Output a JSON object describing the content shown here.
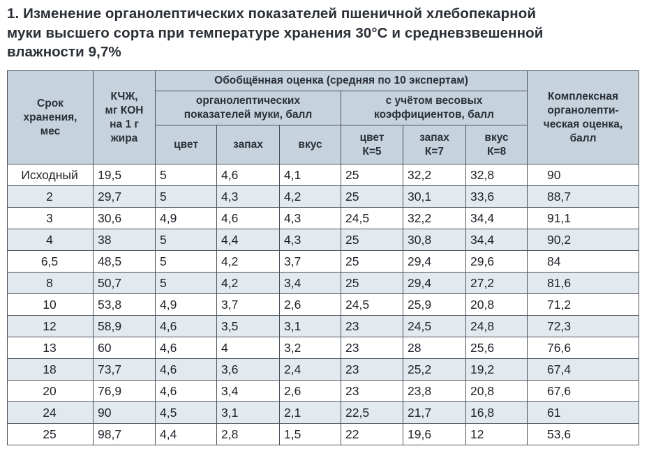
{
  "caption": {
    "line1": "1. Изменение органолептических показателей пшеничной хлебопекарной",
    "line2": "муки высшего сорта при температуре хранения 30°С и средневзвешенной",
    "line3": "влажности 9,7%"
  },
  "table": {
    "headers": {
      "term": "Срок\nхранения,\nмес",
      "acid": "КЧЖ,\nмг КОН\nна 1 г\nжира",
      "general": "Обобщённая оценка (средняя по 10 экспертам)",
      "complex": "Комплексная\nорганолепти-\nческая оценка,\nбалл",
      "organoleptic": "органолептических\nпоказателей муки, балл",
      "weighted": "с учётом весовых\nкоэффициентов, балл",
      "color": "цвет",
      "smell": "запах",
      "taste": "вкус",
      "color_k": "цвет\nК=5",
      "smell_k": "запах\nК=7",
      "taste_k": "вкус\nК=8"
    },
    "rows": [
      {
        "term": "Исходный",
        "acid": "19,5",
        "color": "5",
        "smell": "4,6",
        "taste": "4,1",
        "color_k": "25",
        "smell_k": "32,2",
        "taste_k": "32,8",
        "total": "90"
      },
      {
        "term": "2",
        "acid": "29,7",
        "color": "5",
        "smell": "4,3",
        "taste": "4,2",
        "color_k": "25",
        "smell_k": "30,1",
        "taste_k": "33,6",
        "total": "88,7"
      },
      {
        "term": "3",
        "acid": "30,6",
        "color": "4,9",
        "smell": "4,6",
        "taste": "4,3",
        "color_k": "24,5",
        "smell_k": "32,2",
        "taste_k": "34,4",
        "total": "91,1"
      },
      {
        "term": "4",
        "acid": "38",
        "color": "5",
        "smell": "4,4",
        "taste": "4,3",
        "color_k": "25",
        "smell_k": "30,8",
        "taste_k": "34,4",
        "total": "90,2"
      },
      {
        "term": "6,5",
        "acid": "48,5",
        "color": "5",
        "smell": "4,2",
        "taste": "3,7",
        "color_k": "25",
        "smell_k": "29,4",
        "taste_k": "29,6",
        "total": "84"
      },
      {
        "term": "8",
        "acid": "50,7",
        "color": "5",
        "smell": "4,2",
        "taste": "3,4",
        "color_k": "25",
        "smell_k": "29,4",
        "taste_k": "27,2",
        "total": "81,6"
      },
      {
        "term": "10",
        "acid": "53,8",
        "color": "4,9",
        "smell": "3,7",
        "taste": "2,6",
        "color_k": "24,5",
        "smell_k": "25,9",
        "taste_k": "20,8",
        "total": "71,2"
      },
      {
        "term": "12",
        "acid": "58,9",
        "color": "4,6",
        "smell": "3,5",
        "taste": "3,1",
        "color_k": "23",
        "smell_k": "24,5",
        "taste_k": "24,8",
        "total": "72,3"
      },
      {
        "term": "13",
        "acid": "60",
        "color": "4,6",
        "smell": "4",
        "taste": "3,2",
        "color_k": "23",
        "smell_k": "28",
        "taste_k": "25,6",
        "total": "76,6"
      },
      {
        "term": "18",
        "acid": "73,7",
        "color": "4,6",
        "smell": "3,6",
        "taste": "2,4",
        "color_k": "23",
        "smell_k": "25,2",
        "taste_k": "19,2",
        "total": "67,4"
      },
      {
        "term": "20",
        "acid": "76,9",
        "color": "4,6",
        "smell": "3,4",
        "taste": "2,6",
        "color_k": "23",
        "smell_k": "23,8",
        "taste_k": "20,8",
        "total": "67,6"
      },
      {
        "term": "24",
        "acid": "90",
        "color": "4,5",
        "smell": "3,1",
        "taste": "2,1",
        "color_k": "22,5",
        "smell_k": "21,7",
        "taste_k": "16,8",
        "total": "61"
      },
      {
        "term": "25",
        "acid": "98,7",
        "color": "4,4",
        "smell": "2,8",
        "taste": "1,5",
        "color_k": "22",
        "smell_k": "19,6",
        "taste_k": "12",
        "total": "53,6"
      }
    ]
  }
}
